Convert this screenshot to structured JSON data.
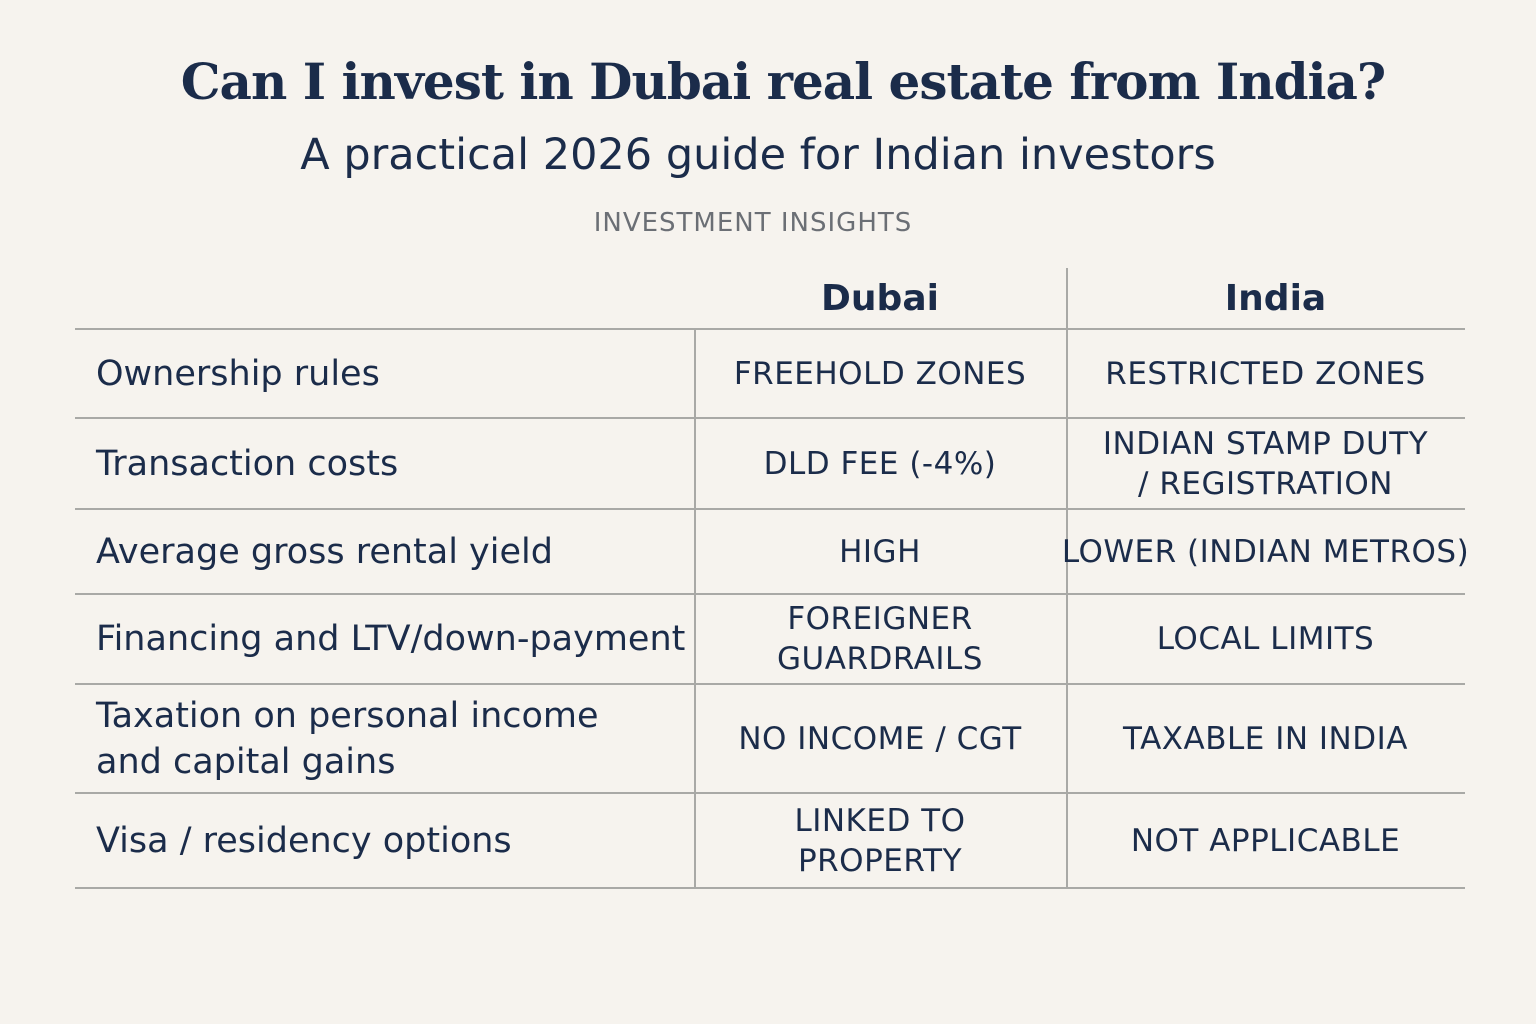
{
  "header": {
    "title": "Can I invest in Dubai real estate from India?",
    "subtitle": "A practical 2026 guide for Indian investors",
    "label": "INVESTMENT INSIGHTS"
  },
  "table": {
    "columns": [
      "Dubai",
      "India"
    ],
    "rows": [
      [
        [
          "Ownership rules"
        ],
        [
          "FREEHOLD ZONES"
        ],
        [
          "RESTRICTED ZONES"
        ]
      ],
      [
        [
          "Transaction costs"
        ],
        [
          "DLD FEE (-4%)"
        ],
        [
          "INDIAN STAMP DUTY",
          "/ REGISTRATION"
        ]
      ],
      [
        [
          "Average gross rental yield"
        ],
        [
          "HIGH"
        ],
        [
          "LOWER (INDIAN METROS)"
        ]
      ],
      [
        [
          "Financing and LTV/down-payment"
        ],
        [
          "FOREIGNER",
          "GUARDRAILS"
        ],
        [
          "LOCAL LIMITS"
        ]
      ],
      [
        [
          "Taxation on personal income",
          "and capital gains"
        ],
        [
          "NO INCOME / CGT"
        ],
        [
          "TAXABLE IN INDIA"
        ]
      ],
      [
        [
          "Visa / residency options"
        ],
        [
          "LINKED TO",
          "PROPERTY"
        ],
        [
          "NOT APPLICABLE"
        ]
      ]
    ]
  }
}
